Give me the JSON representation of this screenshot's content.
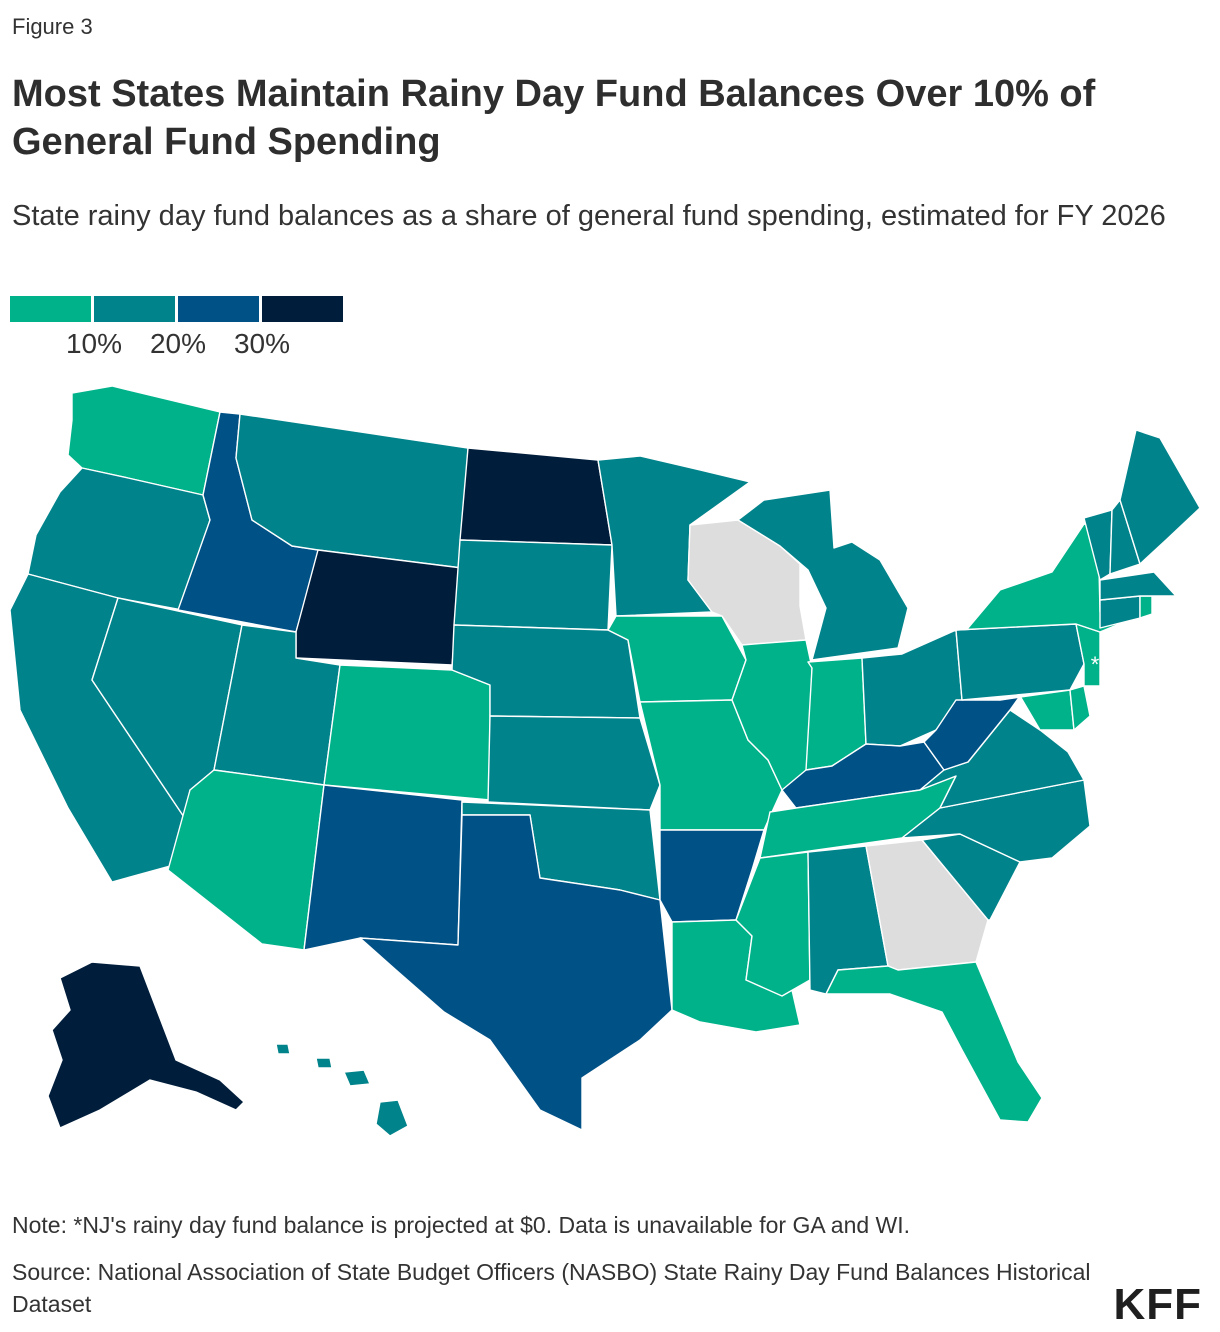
{
  "header": {
    "kicker": "Figure 3",
    "title": "Most States Maintain Rainy Day Fund Balances Over 10% of General Fund Spending",
    "subtitle": "State rainy day fund balances as a share of general fund spending, estimated for FY 2026"
  },
  "legend": {
    "colors": [
      "#00b28a",
      "#00838a",
      "#005186",
      "#001e3c"
    ],
    "ticks": [
      "10%",
      "20%",
      "30%"
    ],
    "no_data_color": "#dddddd"
  },
  "map": {
    "bins": [
      {
        "id": "lt10",
        "range": "0-10%",
        "color": "#00b28a"
      },
      {
        "id": "10to20",
        "range": "10-20%",
        "color": "#00838a"
      },
      {
        "id": "20to30",
        "range": "20-30%",
        "color": "#005186"
      },
      {
        "id": "gt30",
        "range": ">30%",
        "color": "#001e3c"
      },
      {
        "id": "na",
        "range": "no data",
        "color": "#dddddd"
      }
    ],
    "states": [
      {
        "code": "WA",
        "bin": "lt10"
      },
      {
        "code": "OR",
        "bin": "10to20"
      },
      {
        "code": "CA",
        "bin": "10to20"
      },
      {
        "code": "ID",
        "bin": "20to30"
      },
      {
        "code": "NV",
        "bin": "10to20"
      },
      {
        "code": "MT",
        "bin": "10to20"
      },
      {
        "code": "WY",
        "bin": "gt30"
      },
      {
        "code": "UT",
        "bin": "10to20"
      },
      {
        "code": "AZ",
        "bin": "lt10"
      },
      {
        "code": "CO",
        "bin": "lt10"
      },
      {
        "code": "NM",
        "bin": "20to30"
      },
      {
        "code": "ND",
        "bin": "gt30"
      },
      {
        "code": "SD",
        "bin": "10to20"
      },
      {
        "code": "NE",
        "bin": "10to20"
      },
      {
        "code": "KS",
        "bin": "10to20"
      },
      {
        "code": "OK",
        "bin": "10to20"
      },
      {
        "code": "TX",
        "bin": "20to30"
      },
      {
        "code": "MN",
        "bin": "10to20"
      },
      {
        "code": "IA",
        "bin": "lt10"
      },
      {
        "code": "MO",
        "bin": "lt10"
      },
      {
        "code": "AR",
        "bin": "20to30"
      },
      {
        "code": "LA",
        "bin": "lt10"
      },
      {
        "code": "WI",
        "bin": "na"
      },
      {
        "code": "IL",
        "bin": "lt10"
      },
      {
        "code": "MI",
        "bin": "10to20"
      },
      {
        "code": "IN",
        "bin": "lt10"
      },
      {
        "code": "OH",
        "bin": "10to20"
      },
      {
        "code": "KY",
        "bin": "20to30"
      },
      {
        "code": "TN",
        "bin": "lt10"
      },
      {
        "code": "MS",
        "bin": "lt10"
      },
      {
        "code": "AL",
        "bin": "10to20"
      },
      {
        "code": "GA",
        "bin": "na"
      },
      {
        "code": "FL",
        "bin": "lt10"
      },
      {
        "code": "SC",
        "bin": "10to20"
      },
      {
        "code": "NC",
        "bin": "10to20"
      },
      {
        "code": "VA",
        "bin": "10to20"
      },
      {
        "code": "WV",
        "bin": "20to30"
      },
      {
        "code": "PA",
        "bin": "10to20"
      },
      {
        "code": "NY",
        "bin": "lt10"
      },
      {
        "code": "NJ",
        "bin": "lt10"
      },
      {
        "code": "DE",
        "bin": "lt10"
      },
      {
        "code": "MD",
        "bin": "lt10"
      },
      {
        "code": "VT",
        "bin": "10to20"
      },
      {
        "code": "NH",
        "bin": "10to20"
      },
      {
        "code": "ME",
        "bin": "10to20"
      },
      {
        "code": "MA",
        "bin": "10to20"
      },
      {
        "code": "RI",
        "bin": "lt10"
      },
      {
        "code": "CT",
        "bin": "10to20"
      },
      {
        "code": "AK",
        "bin": "gt30"
      },
      {
        "code": "HI",
        "bin": "10to20"
      }
    ],
    "nj_marker": "*"
  },
  "footer": {
    "note": "Note: *NJ's rainy day fund balance is projected at $0. Data is unavailable for GA and WI.",
    "source": "Source: National Association of State Budget Officers (NASBO) State Rainy Day Fund Balances Historical Dataset",
    "logo": "KFF"
  }
}
